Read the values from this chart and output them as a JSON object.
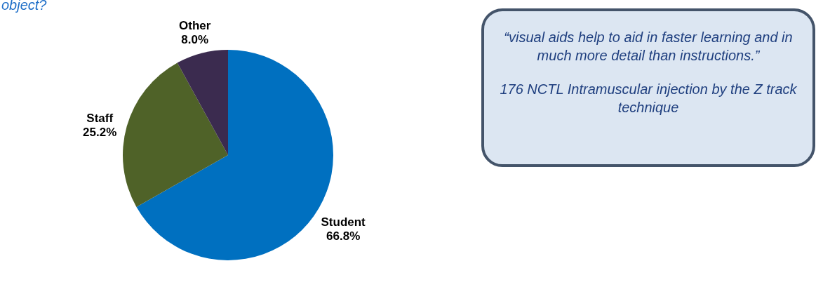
{
  "chart_data": {
    "type": "pie",
    "title": "object?",
    "categories": [
      "Student",
      "Staff",
      "Other"
    ],
    "values": [
      66.8,
      25.2,
      8.0
    ],
    "value_labels": [
      "66.8%",
      "25.2%",
      "8.0%"
    ],
    "colors": [
      "#0070c0",
      "#4f6228",
      "#3b2b4f"
    ],
    "legend": false,
    "annotations": [
      "“visual aids help to aid in faster learning and in much more detail than instructions.”",
      "176 NCTL Intramuscular injection by the Z track technique"
    ]
  }
}
